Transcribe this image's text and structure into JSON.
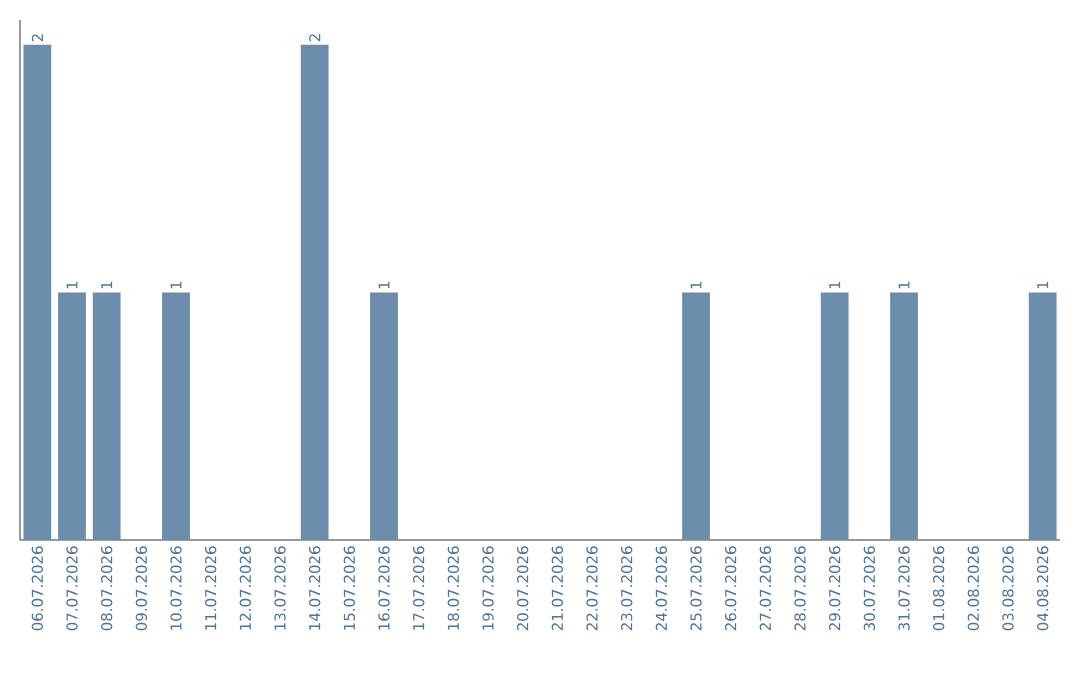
{
  "chart_data": {
    "type": "bar",
    "categories": [
      "06.07.2026",
      "07.07.2026",
      "08.07.2026",
      "09.07.2026",
      "10.07.2026",
      "11.07.2026",
      "12.07.2026",
      "13.07.2026",
      "14.07.2026",
      "15.07.2026",
      "16.07.2026",
      "17.07.2026",
      "18.07.2026",
      "19.07.2026",
      "20.07.2026",
      "21.07.2026",
      "22.07.2026",
      "23.07.2026",
      "24.07.2026",
      "25.07.2026",
      "26.07.2026",
      "27.07.2026",
      "28.07.2026",
      "29.07.2026",
      "30.07.2026",
      "31.07.2026",
      "01.08.2026",
      "02.08.2026",
      "03.08.2026",
      "04.08.2026"
    ],
    "values": [
      2,
      1,
      1,
      null,
      1,
      null,
      null,
      null,
      2,
      null,
      1,
      null,
      null,
      null,
      null,
      null,
      null,
      null,
      null,
      1,
      null,
      null,
      null,
      1,
      null,
      1,
      null,
      null,
      null,
      1
    ],
    "color": "#6b8cab",
    "data_labels": true,
    "tick_labels": "x"
  }
}
